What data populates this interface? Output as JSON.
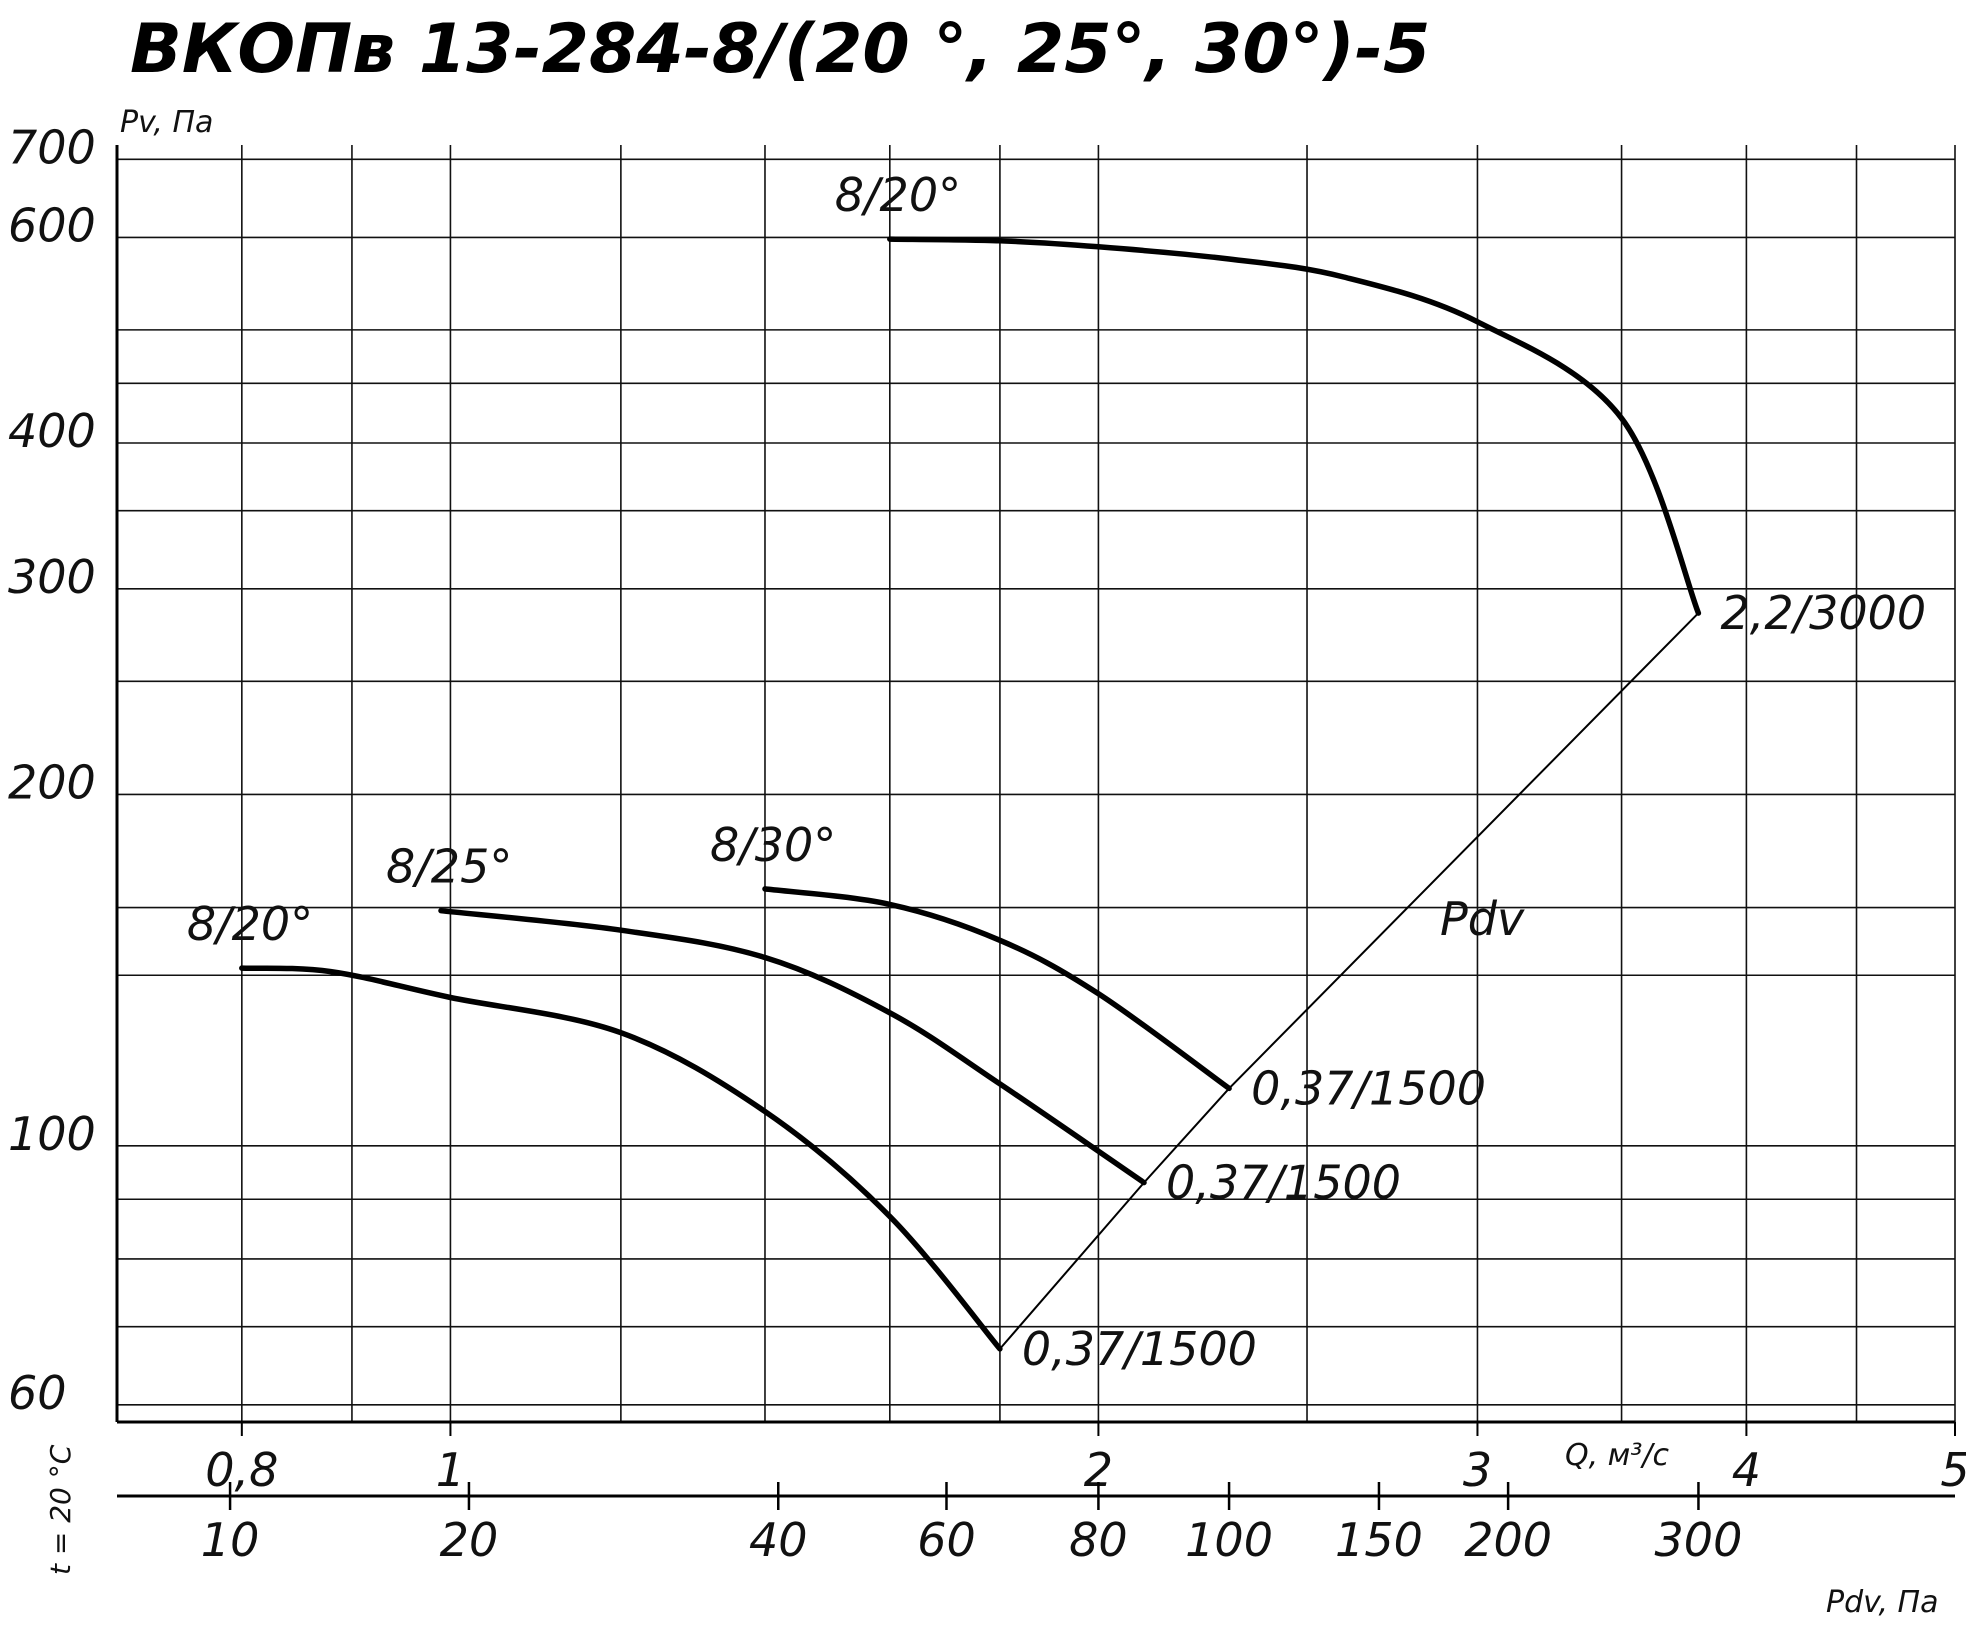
{
  "chart_data": {
    "type": "line",
    "title": "ВКОПв 13-284-8/(20 °, 25°, 30°)-5",
    "ylabel": "Pv, Па",
    "xlabel": "Q, м³/с",
    "x_scale": "log",
    "y_scale": "log",
    "xlim": [
      0.7,
      5
    ],
    "ylim": [
      58,
      720
    ],
    "y_ticks": [
      {
        "value": 60,
        "label": "60"
      },
      {
        "value": 100,
        "label": "100"
      },
      {
        "value": 200,
        "label": "200"
      },
      {
        "value": 300,
        "label": "300"
      },
      {
        "value": 400,
        "label": "400"
      },
      {
        "value": 600,
        "label": "600"
      },
      {
        "value": 700,
        "label": "700"
      }
    ],
    "x_ticks": [
      {
        "value": 0.8,
        "label": "0,8"
      },
      {
        "value": 1,
        "label": "1"
      },
      {
        "value": 2,
        "label": "2"
      },
      {
        "value": 3,
        "label": "3"
      },
      {
        "value": 4,
        "label": "4"
      },
      {
        "value": 5,
        "label": "5"
      }
    ],
    "h_gridlines": [
      60,
      70,
      80,
      90,
      100,
      140,
      160,
      200,
      250,
      300,
      350,
      400,
      450,
      500,
      600,
      700
    ],
    "v_gridlines": [
      0.8,
      0.9,
      1,
      1.2,
      1.4,
      1.6,
      1.8,
      2,
      2.5,
      3,
      3.5,
      4,
      4.5,
      5
    ],
    "pdv_axis": {
      "label": "Pdv, Па",
      "ticks": [
        {
          "q": 0.79,
          "label": "10"
        },
        {
          "q": 1.02,
          "label": "20"
        },
        {
          "q": 1.42,
          "label": "40"
        },
        {
          "q": 1.7,
          "label": "60"
        },
        {
          "q": 2.0,
          "label": "80"
        },
        {
          "q": 2.3,
          "label": "100"
        },
        {
          "q": 2.7,
          "label": "150"
        },
        {
          "q": 3.1,
          "label": "200"
        },
        {
          "q": 3.8,
          "label": "300"
        }
      ]
    },
    "side_label": "t = 20 °C",
    "series": [
      {
        "name": "8/20°",
        "end_label": "0,37/1500",
        "points": [
          [
            0.8,
            142
          ],
          [
            0.88,
            141
          ],
          [
            1.0,
            134
          ],
          [
            1.2,
            125
          ],
          [
            1.4,
            107
          ],
          [
            1.6,
            87
          ],
          [
            1.8,
            67
          ]
        ]
      },
      {
        "name": "8/25°",
        "end_label": "0,37/1500",
        "points": [
          [
            0.99,
            159
          ],
          [
            1.2,
            153
          ],
          [
            1.4,
            145
          ],
          [
            1.6,
            130
          ],
          [
            1.8,
            113
          ],
          [
            2.1,
            93
          ]
        ]
      },
      {
        "name": "8/30°",
        "end_label": "0,37/1500",
        "points": [
          [
            1.4,
            166
          ],
          [
            1.6,
            161
          ],
          [
            1.8,
            150
          ],
          [
            2.0,
            135
          ],
          [
            2.3,
            112
          ]
        ]
      },
      {
        "name": "8/20°",
        "end_label": "2,2/3000",
        "points": [
          [
            1.6,
            598
          ],
          [
            1.8,
            596
          ],
          [
            2.0,
            589
          ],
          [
            2.3,
            575
          ],
          [
            2.6,
            555
          ],
          [
            3.0,
            508
          ],
          [
            3.5,
            420
          ],
          [
            3.8,
            286
          ]
        ]
      }
    ],
    "pdv_line": {
      "label": "Pdv",
      "points": [
        [
          1.8,
          67
        ],
        [
          2.1,
          93
        ],
        [
          2.3,
          112
        ],
        [
          3.8,
          286
        ]
      ]
    }
  }
}
